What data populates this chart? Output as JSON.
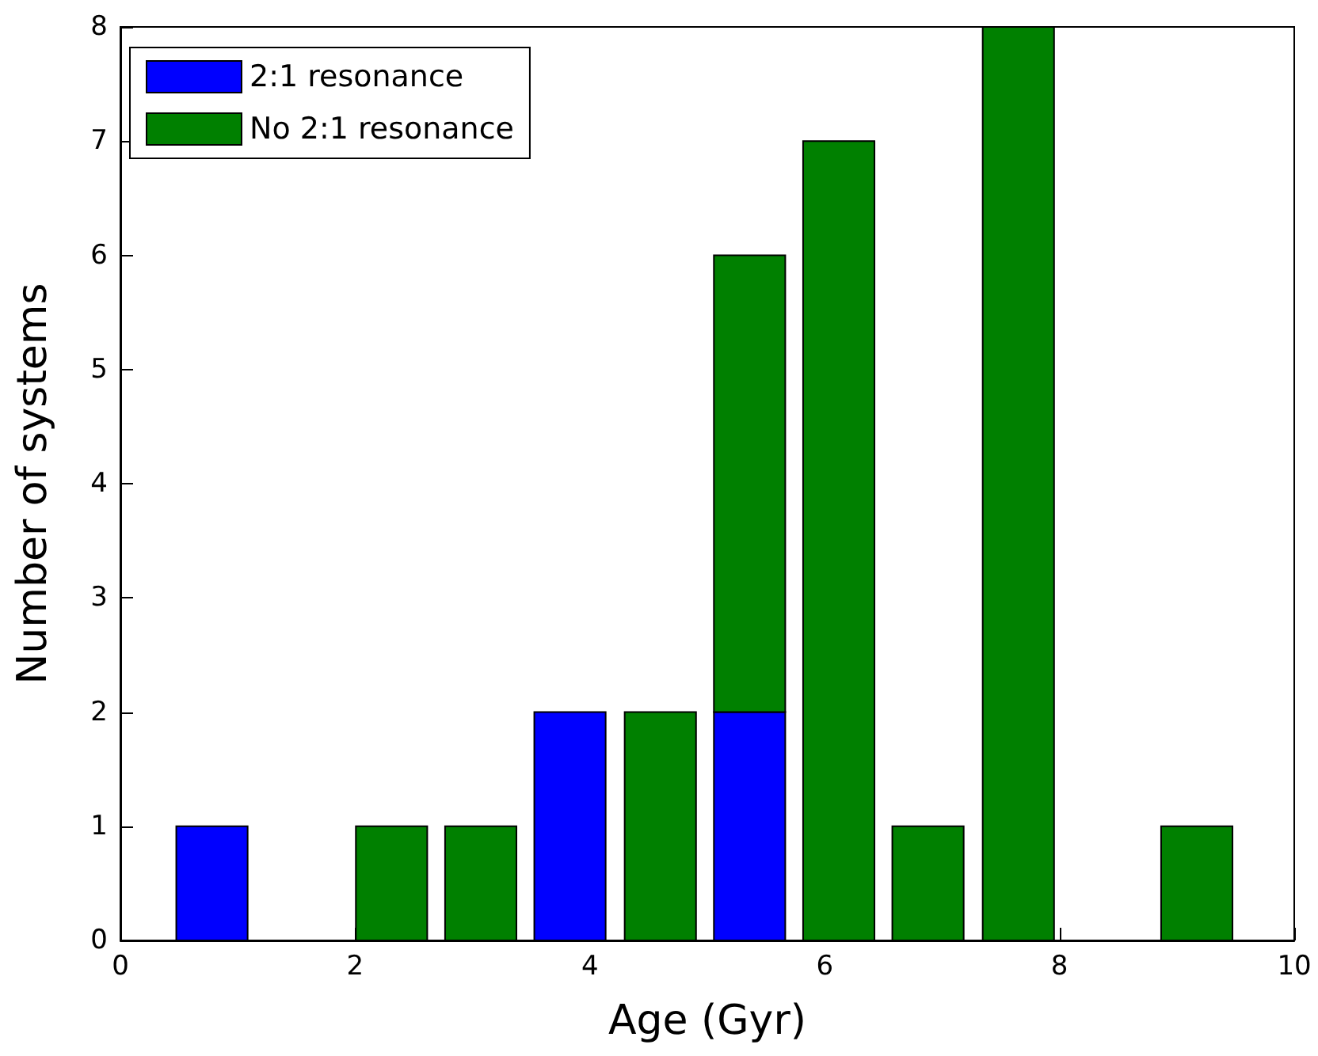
{
  "chart_data": {
    "type": "bar",
    "stacked": true,
    "xlabel": "Age (Gyr)",
    "ylabel": "Number of systems",
    "x": [
      0.78,
      2.31,
      3.07,
      3.83,
      4.6,
      5.36,
      6.12,
      6.88,
      7.65,
      9.17
    ],
    "series": [
      {
        "name": "2:1 resonance",
        "color": "#0000ff",
        "values": [
          1,
          0,
          0,
          2,
          0,
          2,
          0,
          0,
          0,
          0
        ]
      },
      {
        "name": "No 2:1 resonance",
        "color": "#008000",
        "values": [
          0,
          1,
          1,
          0,
          2,
          4,
          7,
          1,
          8,
          1
        ]
      }
    ],
    "xlim": [
      0,
      10
    ],
    "xticks": [
      0,
      2,
      4,
      6,
      8,
      10
    ],
    "ylim": [
      0,
      8
    ],
    "yticks": [
      0,
      1,
      2,
      3,
      4,
      5,
      6,
      7,
      8
    ],
    "grid": false,
    "legend": "top left"
  }
}
